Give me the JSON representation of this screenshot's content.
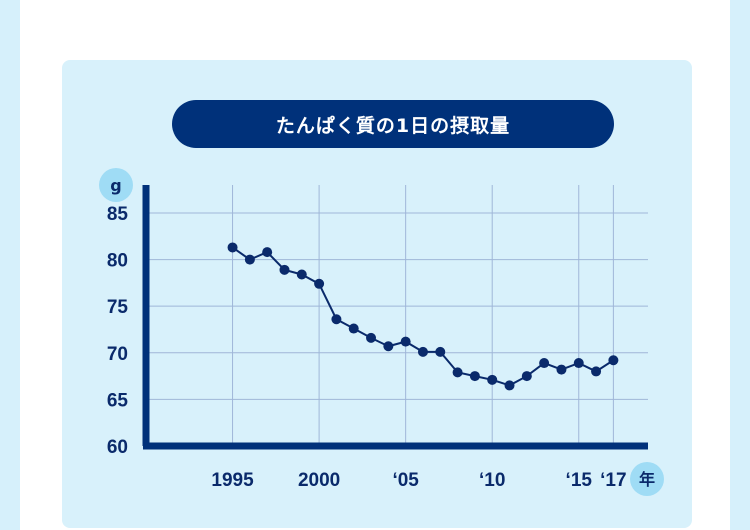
{
  "colors": {
    "background": "#d6f0fb",
    "panel": "#d8f1fb",
    "title_bg": "#00317a",
    "line": "#0a2a6b",
    "unit_badge": "#9fdcf5",
    "grid": "#9fb6d8"
  },
  "chart_data": {
    "type": "line",
    "title": "たんぱく質の1日の摂取量",
    "ylabel": "g",
    "xlabel": "年",
    "ylim": [
      60,
      88
    ],
    "xlim": [
      1990,
      2019
    ],
    "grid": true,
    "y_ticks": [
      "85",
      "80",
      "75",
      "70",
      "65",
      "60"
    ],
    "y_tick_values": [
      85,
      80,
      75,
      70,
      65,
      60
    ],
    "x_ticks": [
      "1995",
      "2000",
      "‘05",
      "‘10",
      "‘15",
      "‘17"
    ],
    "x_tick_values": [
      1995,
      2000,
      2005,
      2010,
      2015,
      2017
    ],
    "x": [
      1995,
      1996,
      1997,
      1998,
      1999,
      2000,
      2001,
      2002,
      2003,
      2004,
      2005,
      2006,
      2007,
      2008,
      2009,
      2010,
      2011,
      2012,
      2013,
      2014,
      2015,
      2016,
      2017
    ],
    "series": [
      {
        "values": [
          81.3,
          80.0,
          80.8,
          78.9,
          78.4,
          77.4,
          73.6,
          72.6,
          71.6,
          70.7,
          71.2,
          70.1,
          70.1,
          67.9,
          67.5,
          67.1,
          66.5,
          67.5,
          68.9,
          68.2,
          68.9,
          68.0,
          69.2
        ]
      }
    ]
  }
}
